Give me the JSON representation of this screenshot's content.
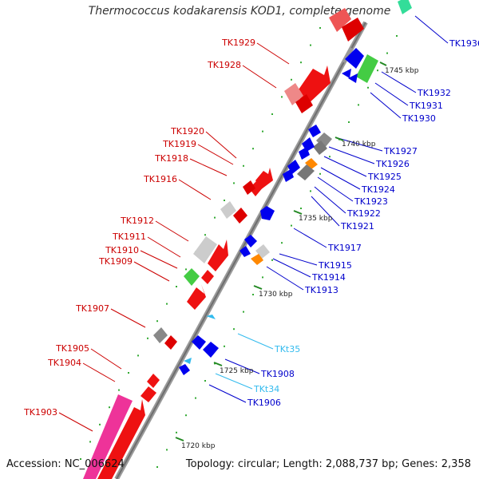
{
  "title": "Thermococcus kodakarensis KOD1, complete genome",
  "accession": "Accession: NC_006624",
  "topology": "Topology: circular; Length: 2,088,737 bp; Genes: 2,358",
  "colors": {
    "forward_label": "#cc0000",
    "reverse_label": "#0000cc",
    "trna_label": "#33bbee",
    "backbone": "#888888"
  },
  "kbp_markers": [
    "1745 kbp",
    "1740 kbp",
    "1735 kbp",
    "1730 kbp",
    "1725 kbp",
    "1720 kbp"
  ],
  "forward_labels": [
    "TK1929",
    "TK1928",
    "TK1920",
    "TK1919",
    "TK1918",
    "TK1916",
    "TK1912",
    "TK1911",
    "TK1910",
    "TK1909",
    "TK1907",
    "TK1905",
    "TK1904",
    "TK1903"
  ],
  "reverse_labels": [
    "TK1936",
    "TK1932",
    "TK1931",
    "TK1930",
    "TK1927",
    "TK1926",
    "TK1925",
    "TK1924",
    "TK1923",
    "TK1922",
    "TK1921",
    "TK1917",
    "TK1915",
    "TK1914",
    "TK1913",
    "TK1908",
    "TK1906"
  ],
  "trna_labels": [
    "TKt35",
    "TKt34"
  ]
}
